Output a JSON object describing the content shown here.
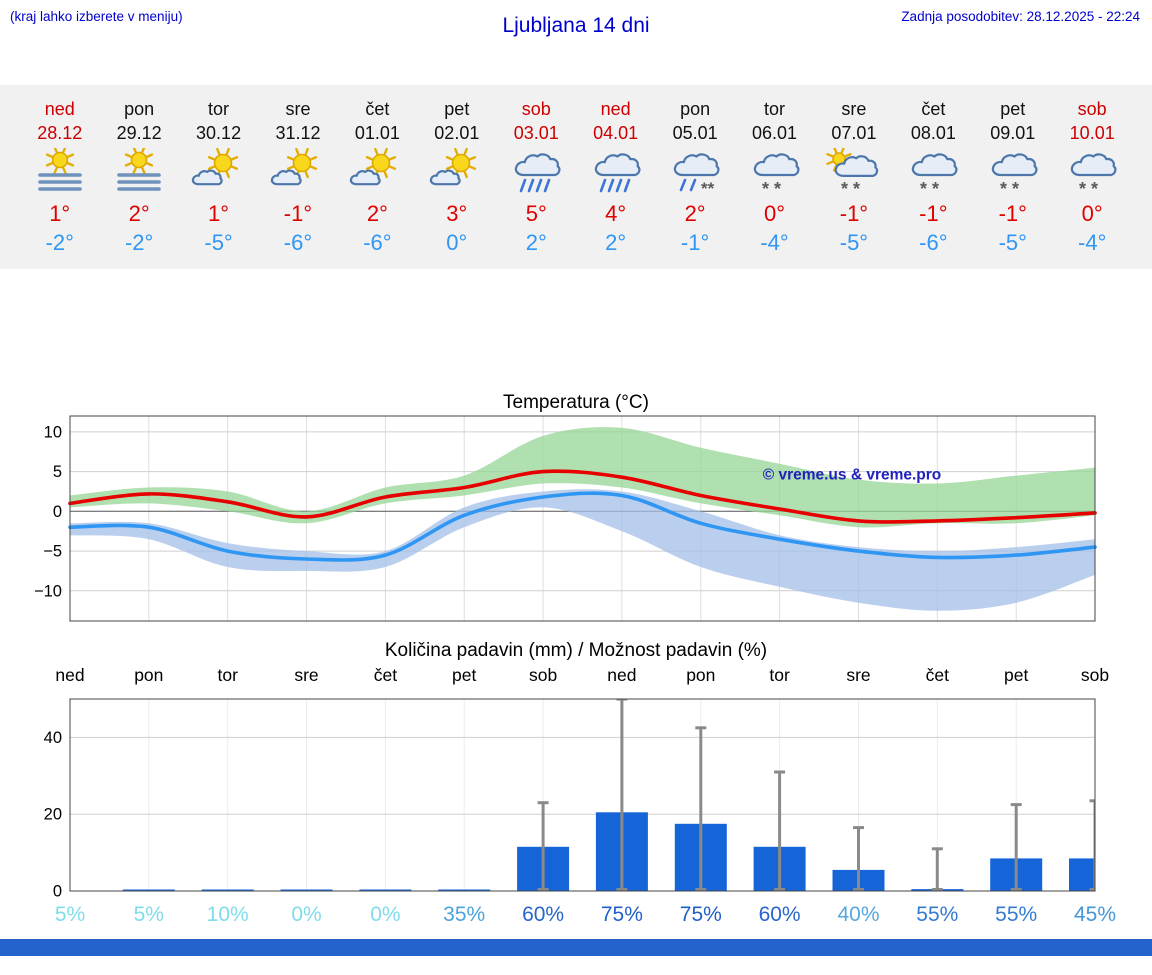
{
  "header": {
    "location_hint": "(kraj lahko izberete v meniju)",
    "title": "Ljubljana 14 dni",
    "last_update": "Zadnja posodobitev: 28.12.2025 - 22:24"
  },
  "colors": {
    "accent_blue": "#0000cc",
    "weekend_red": "#cc0000",
    "high_red": "#e00000",
    "low_blue": "#2f96f3",
    "bar_blue": "#1565d8",
    "bottom_bar": "#2363cb",
    "strip_bg": "#f1f1f1"
  },
  "watermark": "© vreme.us & vreme.pro",
  "forecast": {
    "days": [
      {
        "name": "ned",
        "date": "28.12",
        "weekend": true,
        "icon": "sun-fog",
        "high": "1°",
        "low": "-2°"
      },
      {
        "name": "pon",
        "date": "29.12",
        "weekend": false,
        "icon": "sun-fog",
        "high": "2°",
        "low": "-2°"
      },
      {
        "name": "tor",
        "date": "30.12",
        "weekend": false,
        "icon": "sun-cloud",
        "high": "1°",
        "low": "-5°"
      },
      {
        "name": "sre",
        "date": "31.12",
        "weekend": false,
        "icon": "sun-cloud",
        "high": "-1°",
        "low": "-6°"
      },
      {
        "name": "čet",
        "date": "01.01",
        "weekend": false,
        "icon": "sun-cloud",
        "high": "2°",
        "low": "-6°"
      },
      {
        "name": "pet",
        "date": "02.01",
        "weekend": false,
        "icon": "sun-cloud",
        "high": "3°",
        "low": "0°"
      },
      {
        "name": "sob",
        "date": "03.01",
        "weekend": true,
        "icon": "rain",
        "high": "5°",
        "low": "2°"
      },
      {
        "name": "ned",
        "date": "04.01",
        "weekend": true,
        "icon": "rain",
        "high": "4°",
        "low": "2°"
      },
      {
        "name": "pon",
        "date": "05.01",
        "weekend": false,
        "icon": "rain-snow",
        "high": "2°",
        "low": "-1°"
      },
      {
        "name": "tor",
        "date": "06.01",
        "weekend": false,
        "icon": "snow",
        "high": "0°",
        "low": "-4°"
      },
      {
        "name": "sre",
        "date": "07.01",
        "weekend": false,
        "icon": "sun-cloud-snow",
        "high": "-1°",
        "low": "-5°"
      },
      {
        "name": "čet",
        "date": "08.01",
        "weekend": false,
        "icon": "snow",
        "high": "-1°",
        "low": "-6°"
      },
      {
        "name": "pet",
        "date": "09.01",
        "weekend": false,
        "icon": "snow",
        "high": "-1°",
        "low": "-5°"
      },
      {
        "name": "sob",
        "date": "10.01",
        "weekend": true,
        "icon": "snow",
        "high": "0°",
        "low": "-4°"
      }
    ]
  },
  "chart_data": [
    {
      "type": "line",
      "title": "Temperatura (°C)",
      "categories": [
        "ned",
        "pon",
        "tor",
        "sre",
        "čet",
        "pet",
        "sob",
        "ned",
        "pon",
        "tor",
        "sre",
        "čet",
        "pet",
        "sob"
      ],
      "ylim": [
        -13.8,
        12
      ],
      "yticks": [
        10,
        5,
        0,
        -5,
        -10
      ],
      "grid": true,
      "series": [
        {
          "name": "Tmax",
          "color": "#e60000",
          "values": [
            1,
            2.2,
            1.2,
            -0.7,
            1.8,
            3,
            5,
            4.3,
            2,
            0.3,
            -1.2,
            -1.2,
            -0.8,
            -0.2
          ]
        },
        {
          "name": "Tmin",
          "color": "#2f96f3",
          "values": [
            -2,
            -2,
            -5,
            -6,
            -5.5,
            -0.5,
            1.8,
            2,
            -1.5,
            -3.5,
            -5,
            -5.8,
            -5.5,
            -4.5
          ]
        }
      ],
      "bands": [
        {
          "name": "Tmin-range",
          "color": "#a3bfe8",
          "opacity": 0.75,
          "upper": [
            -1.5,
            -1.5,
            -4,
            -5,
            -5,
            0.5,
            2.5,
            2.5,
            0,
            -3,
            -4.5,
            -5,
            -4.5,
            -3.5
          ],
          "lower": [
            -3,
            -3.5,
            -7,
            -7.5,
            -7,
            -2,
            0.5,
            -2.5,
            -7,
            -9.5,
            -11.5,
            -12.5,
            -11.5,
            -8
          ]
        },
        {
          "name": "Tmax-range",
          "color": "#96d695",
          "opacity": 0.75,
          "upper": [
            2,
            3,
            2.5,
            0,
            3,
            4.5,
            9.5,
            10.5,
            8,
            6,
            4,
            3.5,
            4.5,
            5.5
          ],
          "lower": [
            0.5,
            1,
            0,
            -1.5,
            1,
            2,
            3.5,
            3,
            1,
            -0.5,
            -2,
            -1.5,
            -1.5,
            -0.5
          ]
        }
      ]
    },
    {
      "type": "bar",
      "title": "Količina padavin (mm) / Možnost padavin (%)",
      "categories": [
        "ned",
        "pon",
        "tor",
        "sre",
        "čet",
        "pet",
        "sob",
        "ned",
        "pon",
        "tor",
        "sre",
        "čet",
        "pet",
        "sob"
      ],
      "values": [
        0,
        0.2,
        0.3,
        0.2,
        0.2,
        0.3,
        11.5,
        20.5,
        17.5,
        11.5,
        5.5,
        0.5,
        8.5,
        8.5
      ],
      "whisker_max": [
        0,
        0.5,
        0.5,
        0.5,
        0.5,
        0.5,
        23,
        50,
        42.5,
        31,
        16.5,
        11,
        22.5,
        23.5
      ],
      "percent": [
        5,
        5,
        10,
        0,
        0,
        35,
        60,
        75,
        75,
        60,
        40,
        55,
        55,
        45
      ],
      "percent_labels": [
        "5%",
        "5%",
        "10%",
        "0%",
        "0%",
        "35%",
        "60%",
        "75%",
        "75%",
        "60%",
        "40%",
        "55%",
        "55%",
        "45%"
      ],
      "percent_colors": [
        "#7fdce9",
        "#7fdce9",
        "#7fdce9",
        "#7fdce9",
        "#7fdce9",
        "#4aa3da",
        "#2865cb",
        "#2060c9",
        "#2060c9",
        "#2865cb",
        "#55a7dd",
        "#327bd1",
        "#327bd1",
        "#4596d7"
      ],
      "ylim": [
        0,
        50
      ],
      "yticks": [
        0,
        20,
        40
      ]
    }
  ]
}
